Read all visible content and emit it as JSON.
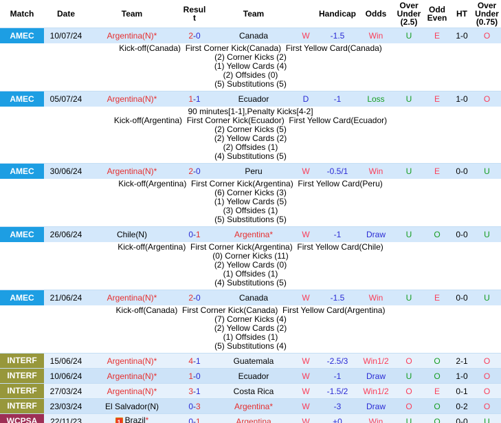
{
  "colors": {
    "red": "#e62e2e",
    "pink": "#fa3e59",
    "blue": "#2929d4",
    "green": "#149c20",
    "black": "#000000",
    "badge_amec": "#1d9ee3",
    "badge_interf": "#97973b",
    "badge_wcpsa": "#9d2f55",
    "row_match": "#d4e8fb",
    "row_alt_light": "#e6f1fc",
    "row_alt_dark": "#cde3f8"
  },
  "table": {
    "headers": [
      "Match",
      "Date",
      "Team",
      "Resul\nt",
      "Team",
      "",
      "Handicap",
      "Odds",
      "Over\nUnder\n(2.5)",
      "Odd\nEven",
      "HT",
      "Over\nUnder\n(0.75)"
    ],
    "rows": [
      {
        "league": "AMEC",
        "league_color": "#1d9ee3",
        "bg": "#d4e8fb",
        "date": "10/07/24",
        "home": {
          "name": "Argentina(N)",
          "star": true,
          "red": true
        },
        "score": {
          "home": "2",
          "away": "0",
          "home_c": "red",
          "away_c": "blue"
        },
        "away": {
          "name": "Canada",
          "star": false,
          "red": false
        },
        "letter": {
          "t": "W",
          "c": "pink"
        },
        "handicap": "-1.5",
        "odds": {
          "t": "Win",
          "c": "pink"
        },
        "ou25": {
          "t": "U",
          "c": "green"
        },
        "oddeven": {
          "t": "E",
          "c": "pink"
        },
        "ht": "1-0",
        "ou075": {
          "t": "O",
          "c": "pink"
        },
        "details": [
          "Kick-off(Canada)  First Corner Kick(Canada)  First Yellow Card(Canada)",
          "(2) Corner Kicks (2)",
          "(1) Yellow Cards (4)",
          "(2) Offsides (0)",
          "(5) Substitutions (5)"
        ]
      },
      {
        "league": "AMEC",
        "league_color": "#1d9ee3",
        "bg": "#d4e8fb",
        "date": "05/07/24",
        "home": {
          "name": "Argentina(N)",
          "star": true,
          "red": true
        },
        "score": {
          "home": "1",
          "away": "1",
          "home_c": "red",
          "away_c": "blue"
        },
        "away": {
          "name": "Ecuador",
          "star": false,
          "red": false
        },
        "letter": {
          "t": "D",
          "c": "blue"
        },
        "handicap": "-1",
        "odds": {
          "t": "Loss",
          "c": "green"
        },
        "ou25": {
          "t": "U",
          "c": "green"
        },
        "oddeven": {
          "t": "E",
          "c": "pink"
        },
        "ht": "1-0",
        "ou075": {
          "t": "O",
          "c": "pink"
        },
        "details": [
          "90 minutes[1-1],Penalty Kicks[4-2]",
          "Kick-off(Argentina)  First Corner Kick(Ecuador)  First Yellow Card(Ecuador)",
          "(2) Corner Kicks (5)",
          "(2) Yellow Cards (2)",
          "(2) Offsides (1)",
          "(4) Substitutions (5)"
        ]
      },
      {
        "league": "AMEC",
        "league_color": "#1d9ee3",
        "bg": "#d4e8fb",
        "date": "30/06/24",
        "home": {
          "name": "Argentina(N)",
          "star": true,
          "red": true
        },
        "score": {
          "home": "2",
          "away": "0",
          "home_c": "red",
          "away_c": "blue"
        },
        "away": {
          "name": "Peru",
          "star": false,
          "red": false
        },
        "letter": {
          "t": "W",
          "c": "pink"
        },
        "handicap": "-0.5/1",
        "odds": {
          "t": "Win",
          "c": "pink"
        },
        "ou25": {
          "t": "U",
          "c": "green"
        },
        "oddeven": {
          "t": "E",
          "c": "pink"
        },
        "ht": "0-0",
        "ou075": {
          "t": "U",
          "c": "green"
        },
        "details": [
          "Kick-off(Argentina)  First Corner Kick(Argentina)  First Yellow Card(Peru)",
          "(6) Corner Kicks (3)",
          "(1) Yellow Cards (5)",
          "(3) Offsides (1)",
          "(5) Substitutions (5)"
        ]
      },
      {
        "league": "AMEC",
        "league_color": "#1d9ee3",
        "bg": "#d4e8fb",
        "date": "26/06/24",
        "home": {
          "name": "Chile(N)",
          "star": false,
          "red": false
        },
        "score": {
          "home": "0",
          "away": "1",
          "home_c": "blue",
          "away_c": "red"
        },
        "away": {
          "name": "Argentina",
          "star": true,
          "red": true
        },
        "letter": {
          "t": "W",
          "c": "pink"
        },
        "handicap": "-1",
        "odds": {
          "t": "Draw",
          "c": "blue"
        },
        "ou25": {
          "t": "U",
          "c": "green"
        },
        "oddeven": {
          "t": "O",
          "c": "green"
        },
        "ht": "0-0",
        "ou075": {
          "t": "U",
          "c": "green"
        },
        "details": [
          "Kick-off(Argentina)  First Corner Kick(Argentina)  First Yellow Card(Chile)",
          "(0) Corner Kicks (11)",
          "(2) Yellow Cards (0)",
          "(1) Offsides (1)",
          "(4) Substitutions (5)"
        ]
      },
      {
        "league": "AMEC",
        "league_color": "#1d9ee3",
        "bg": "#d4e8fb",
        "date": "21/06/24",
        "home": {
          "name": "Argentina(N)",
          "star": true,
          "red": true
        },
        "score": {
          "home": "2",
          "away": "0",
          "home_c": "red",
          "away_c": "blue"
        },
        "away": {
          "name": "Canada",
          "star": false,
          "red": false
        },
        "letter": {
          "t": "W",
          "c": "pink"
        },
        "handicap": "-1.5",
        "odds": {
          "t": "Win",
          "c": "pink"
        },
        "ou25": {
          "t": "U",
          "c": "green"
        },
        "oddeven": {
          "t": "E",
          "c": "pink"
        },
        "ht": "0-0",
        "ou075": {
          "t": "U",
          "c": "green"
        },
        "details": [
          "Kick-off(Canada)  First Corner Kick(Canada)  First Yellow Card(Argentina)",
          "(7) Corner Kicks (4)",
          "(2) Yellow Cards (2)",
          "(1) Offsides (1)",
          "(5) Substitutions (4)"
        ]
      },
      {
        "league": "INTERF",
        "league_color": "#97973b",
        "bg": "#e6f1fc",
        "date": "15/06/24",
        "home": {
          "name": "Argentina(N)",
          "star": true,
          "red": true
        },
        "score": {
          "home": "4",
          "away": "1",
          "home_c": "red",
          "away_c": "blue"
        },
        "away": {
          "name": "Guatemala",
          "star": false,
          "red": false
        },
        "letter": {
          "t": "W",
          "c": "pink"
        },
        "handicap": "-2.5/3",
        "odds": {
          "t": "Win1/2",
          "c": "pink"
        },
        "ou25": {
          "t": "O",
          "c": "pink"
        },
        "oddeven": {
          "t": "O",
          "c": "green"
        },
        "ht": "2-1",
        "ou075": {
          "t": "O",
          "c": "pink"
        }
      },
      {
        "league": "INTERF",
        "league_color": "#97973b",
        "bg": "#cde3f8",
        "date": "10/06/24",
        "home": {
          "name": "Argentina(N)",
          "star": true,
          "red": true
        },
        "score": {
          "home": "1",
          "away": "0",
          "home_c": "red",
          "away_c": "blue"
        },
        "away": {
          "name": "Ecuador",
          "star": false,
          "red": false
        },
        "letter": {
          "t": "W",
          "c": "pink"
        },
        "handicap": "-1",
        "odds": {
          "t": "Draw",
          "c": "blue"
        },
        "ou25": {
          "t": "U",
          "c": "green"
        },
        "oddeven": {
          "t": "O",
          "c": "green"
        },
        "ht": "1-0",
        "ou075": {
          "t": "O",
          "c": "pink"
        }
      },
      {
        "league": "INTERF",
        "league_color": "#97973b",
        "bg": "#e6f1fc",
        "date": "27/03/24",
        "home": {
          "name": "Argentina(N)",
          "star": true,
          "red": true
        },
        "score": {
          "home": "3",
          "away": "1",
          "home_c": "red",
          "away_c": "blue"
        },
        "away": {
          "name": "Costa Rica",
          "star": false,
          "red": false
        },
        "letter": {
          "t": "W",
          "c": "pink"
        },
        "handicap": "-1.5/2",
        "odds": {
          "t": "Win1/2",
          "c": "pink"
        },
        "ou25": {
          "t": "O",
          "c": "pink"
        },
        "oddeven": {
          "t": "E",
          "c": "pink"
        },
        "ht": "0-1",
        "ou075": {
          "t": "O",
          "c": "pink"
        }
      },
      {
        "league": "INTERF",
        "league_color": "#97973b",
        "bg": "#cde3f8",
        "date": "23/03/24",
        "home": {
          "name": "El Salvador(N)",
          "star": false,
          "red": false
        },
        "score": {
          "home": "0",
          "away": "3",
          "home_c": "blue",
          "away_c": "red"
        },
        "away": {
          "name": "Argentina",
          "star": true,
          "red": true
        },
        "letter": {
          "t": "W",
          "c": "pink"
        },
        "handicap": "-3",
        "odds": {
          "t": "Draw",
          "c": "blue"
        },
        "ou25": {
          "t": "O",
          "c": "pink"
        },
        "oddeven": {
          "t": "O",
          "c": "green"
        },
        "ht": "0-2",
        "ou075": {
          "t": "O",
          "c": "pink"
        }
      },
      {
        "league": "WCPSA",
        "league_color": "#9d2f55",
        "bg": "#e6f1fc",
        "date": "22/11/23",
        "home": {
          "name": "Brazil",
          "star": true,
          "red": false,
          "redcard": "1"
        },
        "score": {
          "home": "0",
          "away": "1",
          "home_c": "blue",
          "away_c": "red"
        },
        "away": {
          "name": "Argentina",
          "star": false,
          "red": true
        },
        "letter": {
          "t": "W",
          "c": "pink"
        },
        "handicap": "+0",
        "odds": {
          "t": "Win",
          "c": "pink"
        },
        "ou25": {
          "t": "U",
          "c": "green"
        },
        "oddeven": {
          "t": "O",
          "c": "green"
        },
        "ht": "0-0",
        "ou075": {
          "t": "U",
          "c": "green"
        }
      }
    ]
  }
}
